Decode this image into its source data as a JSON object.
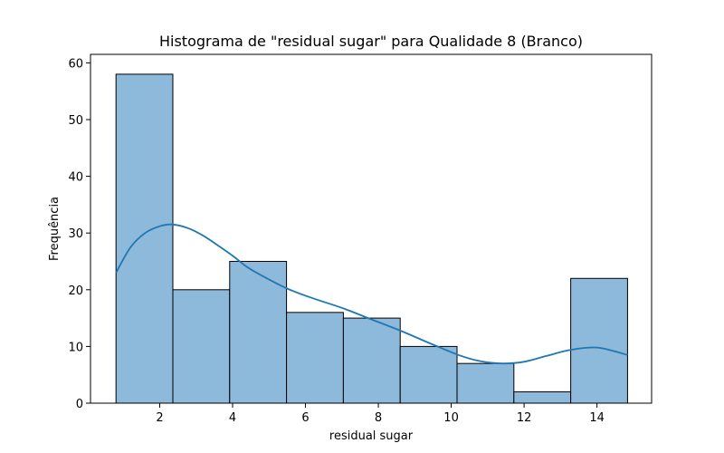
{
  "chart_data": {
    "type": "bar",
    "subtype": "histogram-with-kde",
    "title": "Histograma de \"residual sugar\" para Qualidade 8 (Branco)",
    "xlabel": "residual sugar",
    "ylabel": "Frequência",
    "xlim": [
      0.1,
      15.5
    ],
    "ylim": [
      0,
      61.5
    ],
    "x_ticks": [
      2,
      4,
      6,
      8,
      10,
      12,
      14
    ],
    "y_ticks": [
      0,
      10,
      20,
      30,
      40,
      50,
      60
    ],
    "bins": [
      {
        "start": 0.8,
        "end": 2.36,
        "count": 58
      },
      {
        "start": 2.36,
        "end": 3.92,
        "count": 20
      },
      {
        "start": 3.92,
        "end": 5.48,
        "count": 25
      },
      {
        "start": 5.48,
        "end": 7.04,
        "count": 16
      },
      {
        "start": 7.04,
        "end": 8.6,
        "count": 15
      },
      {
        "start": 8.6,
        "end": 10.16,
        "count": 10
      },
      {
        "start": 10.16,
        "end": 11.72,
        "count": 7
      },
      {
        "start": 11.72,
        "end": 13.28,
        "count": 2
      },
      {
        "start": 13.28,
        "end": 14.84,
        "count": 22
      }
    ],
    "kde": {
      "x": [
        0.8,
        1.2,
        1.6,
        2.0,
        2.36,
        2.8,
        3.2,
        3.6,
        4.0,
        4.4,
        4.8,
        5.5,
        6.2,
        7.0,
        7.8,
        8.6,
        9.4,
        10.2,
        10.8,
        11.4,
        12.0,
        12.6,
        13.2,
        13.8,
        14.2,
        14.84
      ],
      "y": [
        23,
        27.5,
        30,
        31.2,
        31.5,
        30.8,
        29.5,
        27.8,
        26,
        24,
        22.5,
        20.2,
        18.5,
        16.8,
        14.8,
        12.8,
        10.6,
        8.5,
        7.4,
        7,
        7.3,
        8.3,
        9.3,
        9.8,
        9.6,
        8.5
      ]
    },
    "grid": false,
    "legend": "none",
    "colors": {
      "bar_fill": "#8db9da",
      "bar_edge": "#000000",
      "kde_line": "#1f77b4"
    }
  }
}
